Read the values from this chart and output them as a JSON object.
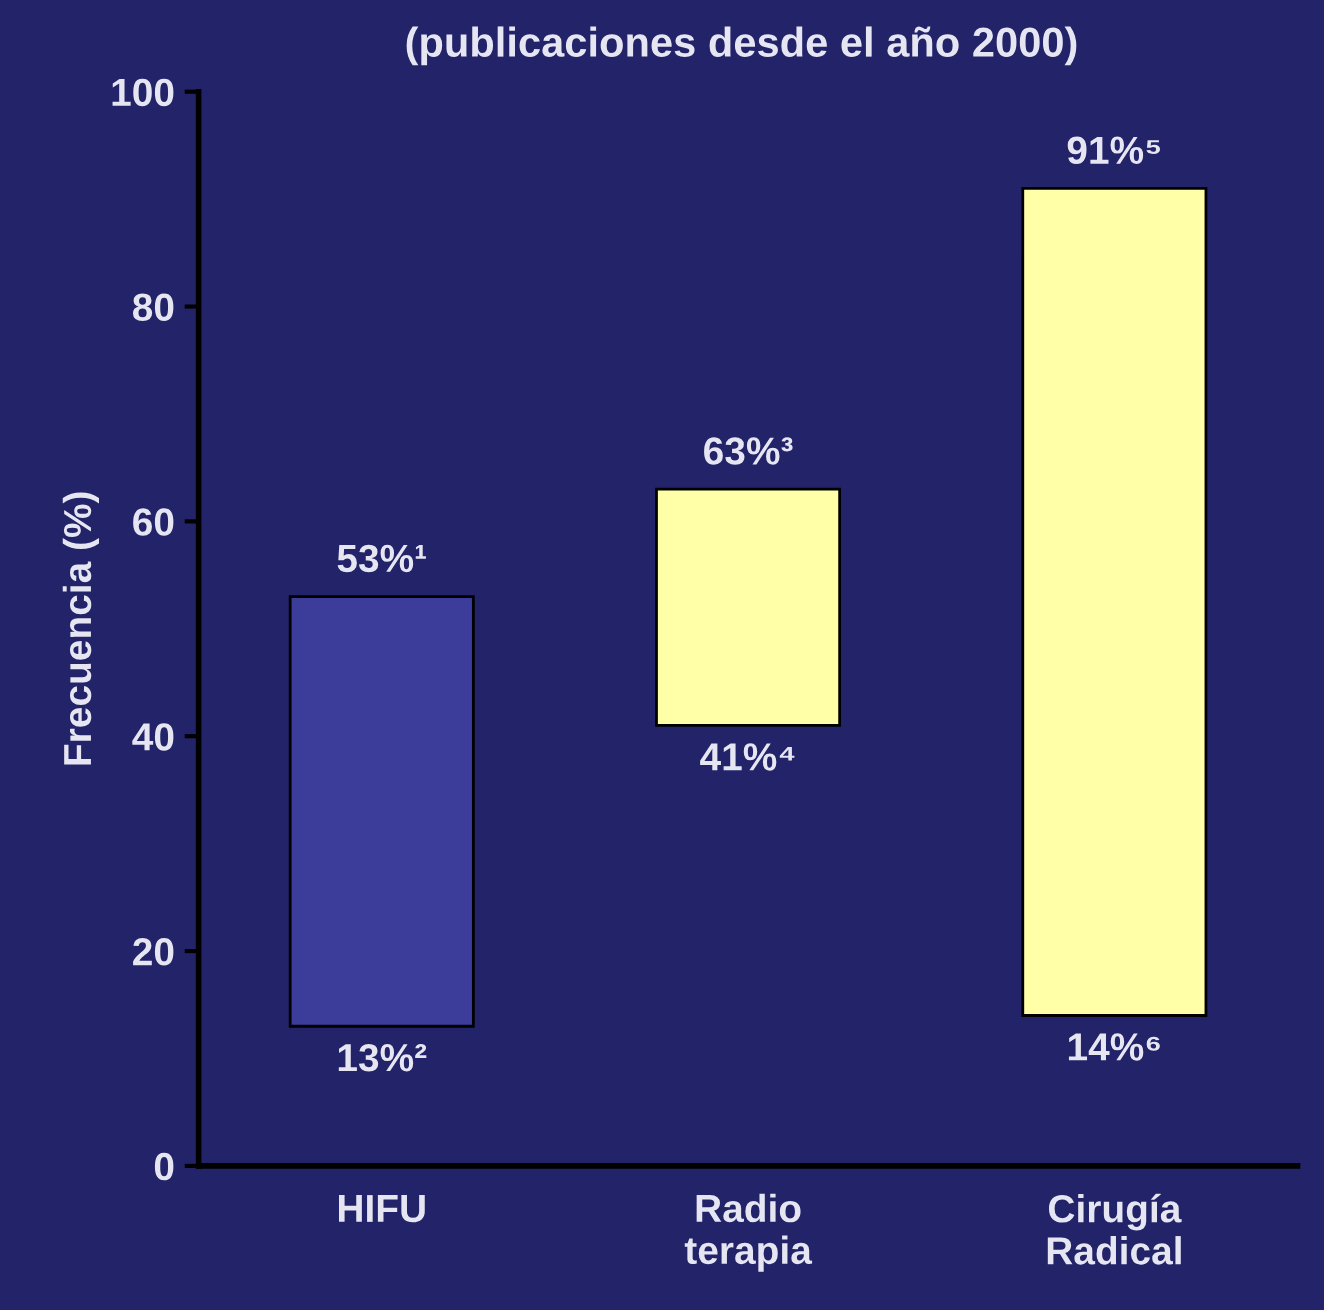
{
  "chart_data": {
    "type": "bar",
    "title": "(publicaciones desde el año 2000)",
    "ylabel": "Frecuencia (%)",
    "categories": [
      "HIFU",
      "Radio\nterapia",
      "Cirugía\nRadical"
    ],
    "base": [
      13,
      41,
      14
    ],
    "values": [
      40,
      22,
      77
    ],
    "colors": [
      "#3c3c9a",
      "#ffffa8",
      "#ffffa8"
    ],
    "ylim": [
      0,
      100
    ],
    "yticks": [
      0,
      20,
      40,
      60,
      80,
      100
    ],
    "grid": false,
    "legend": false,
    "annotations": [
      {
        "text": "53%¹",
        "x": "HIFU",
        "y": 53
      },
      {
        "text": "13%²",
        "x": "HIFU",
        "y": 13
      },
      {
        "text": "63%³",
        "x": "Radio\nterapia",
        "y": 63
      },
      {
        "text": "41%⁴",
        "x": "Radio\nterapia",
        "y": 41
      },
      {
        "text": "91%⁵",
        "x": "Cirugía\nRadical",
        "y": 91
      },
      {
        "text": "14%⁶",
        "x": "Cirugía\nRadical",
        "y": 14
      }
    ]
  }
}
